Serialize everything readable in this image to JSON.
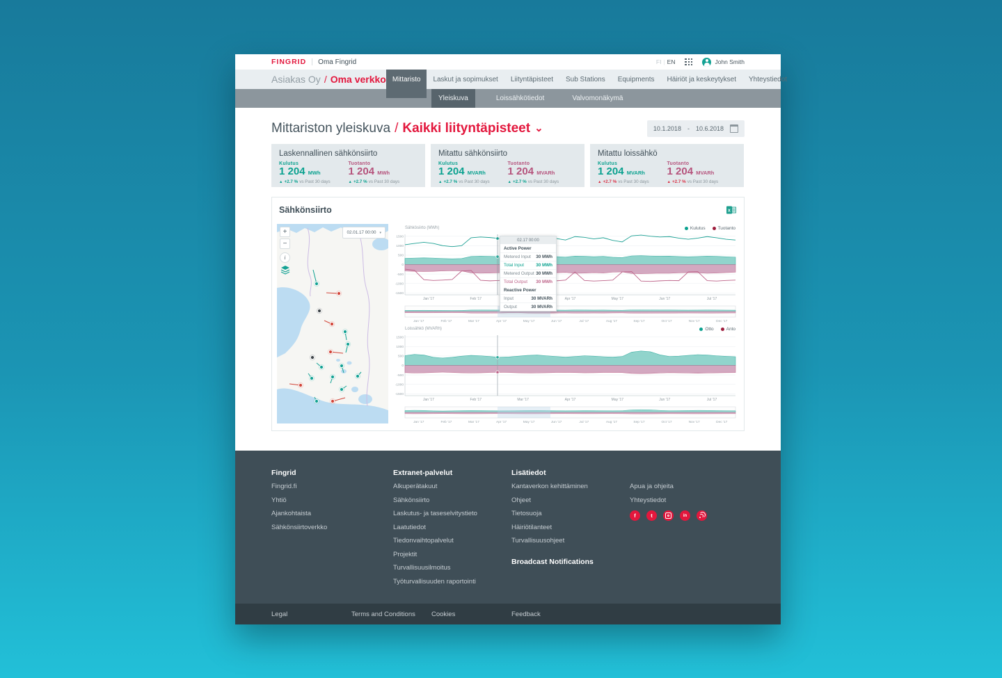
{
  "colors": {
    "red": "#e3173d",
    "teal": "#0aa18f",
    "pink": "#b5537c",
    "dark_red": "#9d1c3c"
  },
  "header": {
    "logo": "FINGRID",
    "product": "Oma Fingrid",
    "lang_separator": "|",
    "languages": [
      {
        "label": "FI",
        "active": false
      },
      {
        "label": "EN",
        "active": true
      }
    ],
    "user": {
      "name": "John Smith"
    }
  },
  "nav": {
    "breadcrumb": {
      "company": "Asiakas Oy",
      "separator": "/",
      "section": "Oma verkko"
    },
    "tabs": [
      {
        "label": "Mittaristo",
        "active": true
      },
      {
        "label": "Laskut ja sopimukset",
        "active": false
      },
      {
        "label": "Liityntäpisteet",
        "active": false
      },
      {
        "label": "Sub Stations",
        "active": false
      },
      {
        "label": "Equipments",
        "active": false
      },
      {
        "label": "Häiriöt ja keskeytykset",
        "active": false
      },
      {
        "label": "Yhteystiedot",
        "active": false
      }
    ],
    "subtabs": [
      {
        "label": "Yleiskuva",
        "active": true
      },
      {
        "label": "Loissähkötiedot",
        "active": false
      },
      {
        "label": "Valvomonäkymä",
        "active": false
      }
    ]
  },
  "page": {
    "title": "Mittariston yleiskuva",
    "title_separator": "/",
    "title_selection": "Kaikki liityntäpisteet",
    "chevron": "⌄",
    "date_range": {
      "from": "10.1.2018",
      "separator": "-",
      "to": "10.6.2018"
    }
  },
  "kpi_cards": [
    {
      "title": "Laskennallinen sähkönsiirto",
      "metrics": [
        {
          "label": "Kulutus",
          "value": "1 204",
          "unit": "MWh",
          "tone": "teal",
          "delta_tone": "teal",
          "trend_icon": "▲",
          "delta": "+2.7 %",
          "delta_suffix": "vs Past 30 days"
        },
        {
          "label": "Tuotanto",
          "value": "1 204",
          "unit": "MWh",
          "tone": "pink",
          "delta_tone": "teal",
          "trend_icon": "▲",
          "delta": "+2.7 %",
          "delta_suffix": "vs Past 30 days"
        }
      ]
    },
    {
      "title": "Mitattu sähkönsiirto",
      "metrics": [
        {
          "label": "Kulutus",
          "value": "1 204",
          "unit": "MVARh",
          "tone": "teal",
          "delta_tone": "teal",
          "trend_icon": "▲",
          "delta": "+2.7 %",
          "delta_suffix": "vs Past 30 days"
        },
        {
          "label": "Tuotanto",
          "value": "1 204",
          "unit": "MVARh",
          "tone": "pink",
          "delta_tone": "teal",
          "trend_icon": "▲",
          "delta": "+2.7 %",
          "delta_suffix": "vs Past 30 days"
        }
      ]
    },
    {
      "title": "Mitattu loissähkö",
      "metrics": [
        {
          "label": "Kulutus",
          "value": "1 204",
          "unit": "MVARh",
          "tone": "teal",
          "delta_tone": "red",
          "trend_icon": "▲",
          "delta": "+2.7 %",
          "delta_suffix": "vs Past 30 days"
        },
        {
          "label": "Tuotanto",
          "value": "1 204",
          "unit": "MVARh",
          "tone": "pink",
          "delta_tone": "red",
          "trend_icon": "▲",
          "delta": "+2.7 %",
          "delta_suffix": "vs Past 30 days"
        }
      ]
    }
  ],
  "chart_panel": {
    "title": "Sähkönsiirto",
    "map": {
      "datetime": "02.01.17 00:00",
      "caret": "▾",
      "zoom_in": "+",
      "zoom_out": "−",
      "info": "i",
      "markers": [
        [
          57,
          86,
          "t",
          -5,
          -20
        ],
        [
          89,
          100,
          "r",
          -18,
          -1
        ],
        [
          61,
          125,
          "k",
          0,
          0
        ],
        [
          79,
          144,
          "r",
          -11,
          -5
        ],
        [
          98,
          155,
          "t",
          2,
          12
        ],
        [
          102,
          173,
          "t",
          -3,
          12
        ],
        [
          77,
          184,
          "r",
          18,
          2
        ],
        [
          51,
          192,
          "k",
          0,
          0
        ],
        [
          64,
          206,
          "t",
          -7,
          -6
        ],
        [
          93,
          204,
          "t",
          3,
          10
        ],
        [
          50,
          222,
          "t",
          -5,
          -7
        ],
        [
          80,
          220,
          "t",
          -3,
          9
        ],
        [
          116,
          219,
          "t",
          5,
          -6
        ],
        [
          34,
          232,
          "r",
          -16,
          -2
        ],
        [
          93,
          238,
          "t",
          7,
          -5
        ],
        [
          57,
          255,
          "t",
          -3,
          -6
        ],
        [
          80,
          255,
          "r",
          18,
          -5
        ]
      ]
    },
    "tooltip": {
      "time": "02.17 00:00",
      "sections": [
        {
          "title": "Active Power",
          "rows": [
            {
              "label": "Metered Input",
              "value": "30 MWh",
              "tone": ""
            },
            {
              "label": "Total Input",
              "value": "30 MWh",
              "tone": "teal"
            },
            {
              "label": "Metered Output",
              "value": "30 MWh",
              "tone": ""
            },
            {
              "label": "Total Output",
              "value": "30 MWh",
              "tone": "pink"
            }
          ]
        },
        {
          "title": "Reactive Power",
          "rows": [
            {
              "label": "Input",
              "value": "30 MVARh",
              "tone": ""
            },
            {
              "label": "Output",
              "value": "30 MVARh",
              "tone": ""
            }
          ]
        }
      ]
    }
  },
  "chart_data": [
    {
      "id": "sahkosiirto",
      "type": "area",
      "title": "Sähkösiirto (MWh)",
      "ylim": [
        -1600,
        1600
      ],
      "yticks": [
        1500,
        1000,
        500,
        0,
        -500,
        -1000,
        -1500
      ],
      "xlabels": [
        "Jan '17",
        "Feb '17",
        "Mar '17",
        "Apr '17",
        "May '17",
        "Jun '17",
        "Jul '17"
      ],
      "nav_xlabels": [
        "Jan '17",
        "Feb '17",
        "Mar '17",
        "Apr '17",
        "May '17",
        "Jun '17",
        "Jul '17",
        "Aug '17",
        "Sep '17",
        "Oct '17",
        "Nov '17",
        "Dec '17"
      ],
      "legend": [
        {
          "label": "Kulutus",
          "color": "#0aa18f"
        },
        {
          "label": "Tuotanto",
          "color": "#9d1c3c"
        }
      ],
      "crosshair": {
        "frac": 0.28,
        "dots": [
          0,
          2
        ]
      },
      "navigator": [
        0,
        1
      ],
      "series": [
        {
          "name": "Total Input",
          "type": "area",
          "fill": "#86d0c7",
          "stroke": "#2aa99c",
          "values": [
            330,
            345,
            355,
            345,
            320,
            305,
            320,
            430,
            445,
            435,
            420,
            330,
            310,
            415,
            450,
            445,
            420,
            400,
            450,
            440,
            415,
            435,
            390,
            370,
            460,
            470,
            455,
            445,
            450,
            425,
            410,
            425,
            450,
            435,
            410,
            395
          ]
        },
        {
          "name": "Total Output",
          "type": "area",
          "fill": "#cf9fba",
          "stroke": "#bd6288",
          "values": [
            -340,
            -355,
            -365,
            -355,
            -335,
            -320,
            -335,
            -440,
            -455,
            -445,
            -430,
            -345,
            -325,
            -425,
            -460,
            -455,
            -430,
            -410,
            -460,
            -450,
            -425,
            -445,
            -400,
            -385,
            -470,
            -480,
            -465,
            -455,
            -460,
            -435,
            -420,
            -435,
            -460,
            -445,
            -420,
            -405
          ]
        },
        {
          "name": "Kulutus",
          "type": "line",
          "color": "#1ba093",
          "values": [
            1050,
            1120,
            1180,
            1120,
            1000,
            950,
            1000,
            1420,
            1460,
            1430,
            1380,
            1060,
            990,
            1340,
            1480,
            1460,
            1380,
            1300,
            1480,
            1440,
            1360,
            1420,
            1280,
            1200,
            1520,
            1560,
            1500,
            1460,
            1480,
            1400,
            1340,
            1400,
            1480,
            1420,
            1340,
            1300
          ]
        },
        {
          "name": "Tuotanto",
          "type": "line",
          "color": "#bd6288",
          "values": [
            -240,
            -300,
            -800,
            -840,
            -820,
            -790,
            -340,
            -310,
            -830,
            -860,
            -840,
            -810,
            -370,
            -340,
            -850,
            -880,
            -860,
            -820,
            -390,
            -840,
            -870,
            -850,
            -820,
            -390,
            -370,
            -870,
            -890,
            -860,
            -840,
            -850,
            -390,
            -370,
            -850,
            -870,
            -840,
            -820
          ]
        }
      ]
    },
    {
      "id": "loissahko",
      "type": "area",
      "title": "Loissähkö (MVARh)",
      "ylim": [
        -1600,
        1600
      ],
      "yticks": [
        1500,
        1000,
        500,
        0,
        -500,
        -1000,
        -1500
      ],
      "xlabels": [
        "Jan '17",
        "Feb '17",
        "Mar '17",
        "Apr '17",
        "May '17",
        "Jun '17",
        "Jul '17"
      ],
      "nav_xlabels": [
        "Jan '17",
        "Feb '17",
        "Mar '17",
        "Apr '17",
        "May '17",
        "Jun '17",
        "Jul '17",
        "Aug '17",
        "Sep '17",
        "Oct '17",
        "Nov '17",
        "Dec '17"
      ],
      "legend": [
        {
          "label": "Otto",
          "color": "#0aa18f"
        },
        {
          "label": "Anto",
          "color": "#9d1c3c"
        }
      ],
      "crosshair": {
        "frac": 0.28,
        "dots": [
          0,
          1
        ]
      },
      "navigator": [
        0,
        1
      ],
      "series": [
        {
          "name": "Otto",
          "type": "area",
          "fill": "#86d0c7",
          "stroke": "#2aa99c",
          "values": [
            520,
            580,
            550,
            430,
            390,
            430,
            490,
            530,
            510,
            470,
            430,
            450,
            490,
            530,
            550,
            510,
            470,
            440,
            470,
            510,
            490,
            460,
            440,
            470,
            700,
            760,
            720,
            560,
            470,
            490,
            530,
            570,
            550,
            510,
            480,
            460
          ]
        },
        {
          "name": "Anto",
          "type": "area",
          "fill": "#cf9fba",
          "stroke": "#bd6288",
          "values": [
            -380,
            -400,
            -390,
            -370,
            -350,
            -370,
            -390,
            -400,
            -390,
            -370,
            -360,
            -370,
            -390,
            -400,
            -395,
            -385,
            -370,
            -365,
            -375,
            -390,
            -385,
            -370,
            -365,
            -375,
            -420,
            -430,
            -420,
            -400,
            -380,
            -390,
            -400,
            -410,
            -400,
            -390,
            -380,
            -375
          ]
        }
      ]
    }
  ],
  "footer": {
    "columns": [
      {
        "title": "Fingrid",
        "links": [
          "Fingrid.fi",
          "Yhtiö",
          "Ajankohtaista",
          "Sähkönsiirtoverkko"
        ]
      },
      {
        "title": "Extranet-palvelut",
        "links": [
          "Alkuperätakuut",
          "Sähkönsiirto",
          "Laskutus- ja taseselvitystieto",
          "Laatutiedot",
          "Tiedonvaihtopalvelut",
          "Projektit",
          "Turvallisuusilmoitus",
          "Työturvallisuuden raportointi"
        ]
      },
      {
        "title": "Lisätiedot",
        "links": [
          "Kantaverkon kehittäminen",
          "Ohjeet",
          "Tietosuoja",
          "Häiriötilanteet",
          "Turvallisuusohjeet"
        ],
        "extra": "Broadcast Notifications"
      },
      {
        "title": "",
        "links": [
          "Apua ja ohjeita",
          "Yhteystiedot"
        ],
        "social": [
          "facebook",
          "twitter",
          "instagram",
          "linkedin",
          "rss"
        ]
      }
    ],
    "legal": [
      "Legal",
      "Terms and Conditions",
      "Cookies",
      "Feedback"
    ]
  }
}
